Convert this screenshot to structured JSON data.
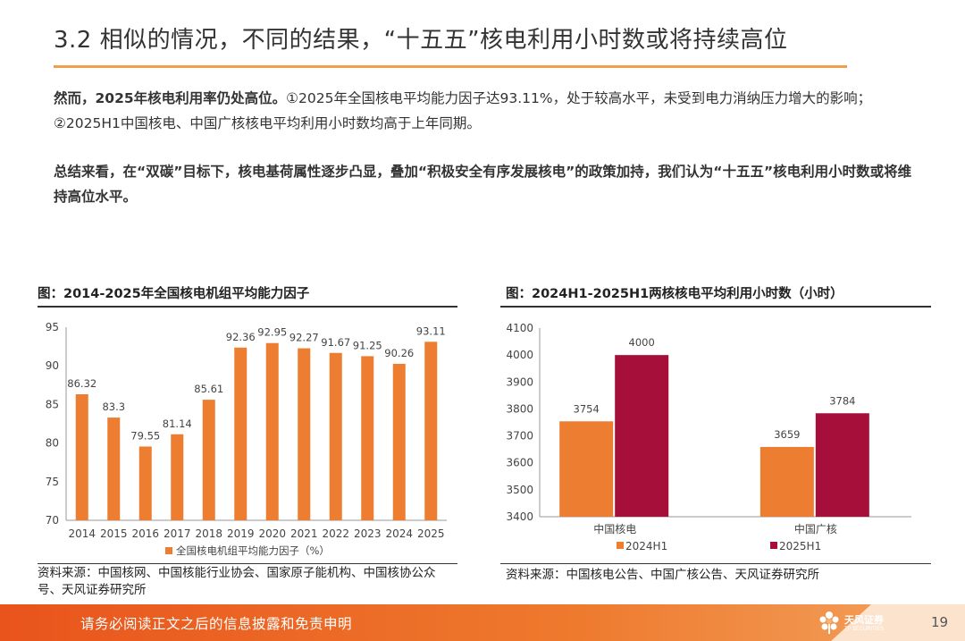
{
  "title": "3.2 相似的情况，不同的结果，“十五五”核电利用小时数或将持续高位",
  "para1": {
    "lead": "然而，2025年核电利用率仍处高位。",
    "rest": "①2025年全国核电平均能力因子达93.11%，处于较高水平，未受到电力消纳压力增大的影响；②2025H1中国核电、中国广核核电平均利用小时数均高于上年同期。"
  },
  "para2": "总结来看，在“双碳”目标下，核电基荷属性逐步凸显，叠加“积极安全有序发展核电”的政策加持，我们认为“十五五”核电利用小时数或将维持高位水平。",
  "colors": {
    "orange": "#ED7D31",
    "crimson": "#A50F3A",
    "accent": "#F0A04B"
  },
  "chart_data": [
    {
      "type": "bar",
      "title": "图：2014-2025年全国核电机组平均能力因子",
      "categories": [
        "2014",
        "2015",
        "2016",
        "2017",
        "2018",
        "2019",
        "2020",
        "2021",
        "2022",
        "2023",
        "2024",
        "2025"
      ],
      "series": [
        {
          "name": "全国核电机组平均能力因子（%）",
          "values": [
            86.32,
            83.3,
            79.55,
            81.14,
            85.61,
            92.36,
            92.95,
            92.27,
            91.67,
            91.25,
            90.26,
            93.11
          ],
          "labels": [
            "86.32",
            "83.3",
            "79.55",
            "81.14",
            "85.61",
            "92.36",
            "92.95",
            "92.27",
            "91.67",
            "91.25",
            "90.26",
            "93.11"
          ]
        }
      ],
      "ylim": [
        70,
        95
      ],
      "yticks": [
        "70",
        "75",
        "80",
        "85",
        "90",
        "95"
      ],
      "legend": "bottom",
      "source": "资料来源：中国核网、中国核能行业协会、国家原子能机构、中国核协公众号、天风证券研究所"
    },
    {
      "type": "bar",
      "title": "图：2024H1-2025H1两核核电平均利用小时数（小时）",
      "categories": [
        "中国核电",
        "中国广核"
      ],
      "series": [
        {
          "name": "2024H1",
          "values": [
            3754,
            3659
          ],
          "labels": [
            "3754",
            "3659"
          ]
        },
        {
          "name": "2025H1",
          "values": [
            4000,
            3784
          ],
          "labels": [
            "4000",
            "3784"
          ]
        }
      ],
      "ylim": [
        3400,
        4100
      ],
      "yticks": [
        "3400",
        "3500",
        "3600",
        "3700",
        "3800",
        "3900",
        "4000",
        "4100"
      ],
      "legend": "bottom",
      "source": "资料来源：中国核电公告、中国广核公告、天风证券研究所"
    }
  ],
  "footer": {
    "disclaimer": "请务必阅读正文之后的信息披露和免责申明",
    "logo_name": "天风证券",
    "logo_sub": "TF SECURITIES",
    "page": "19"
  }
}
